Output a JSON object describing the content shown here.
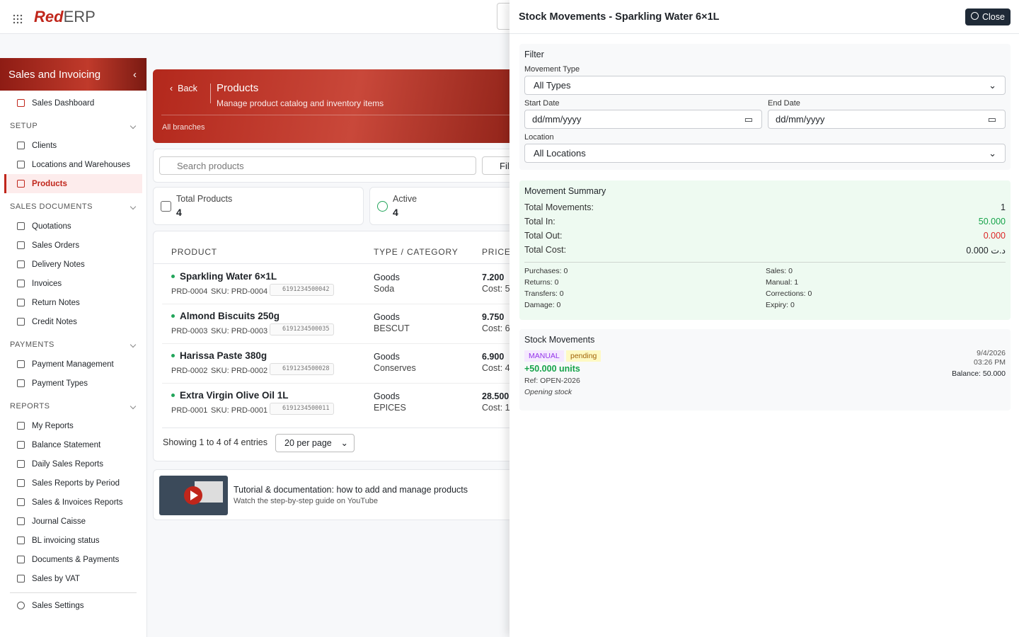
{
  "header": {
    "logo_red": "Red",
    "logo_rest": "ERP"
  },
  "sidebar": {
    "title": "Sales and Invoicing",
    "dashboard": "Sales Dashboard",
    "sections": [
      {
        "title": "SETUP",
        "items": [
          "Clients",
          "Locations and Warehouses",
          "Products"
        ]
      },
      {
        "title": "SALES DOCUMENTS",
        "items": [
          "Quotations",
          "Sales Orders",
          "Delivery Notes",
          "Invoices",
          "Return Notes",
          "Credit Notes"
        ]
      },
      {
        "title": "PAYMENTS",
        "items": [
          "Payment Management",
          "Payment Types"
        ]
      },
      {
        "title": "REPORTS",
        "items": [
          "My Reports",
          "Balance Statement",
          "Daily Sales Reports",
          "Sales Reports by Period",
          "Sales & Invoices Reports",
          "Journal Caisse",
          "BL invoicing status",
          "Documents & Payments",
          "Sales by VAT"
        ]
      }
    ],
    "settings": "Sales Settings"
  },
  "main": {
    "back": "Back",
    "title": "Products",
    "subtitle": "Manage product catalog and inventory items",
    "branches": "All branches",
    "search_placeholder": "Search products",
    "filter": "Filters",
    "stats": [
      {
        "label": "Total Products",
        "value": "4"
      },
      {
        "label": "Active",
        "value": "4"
      }
    ],
    "columns": [
      "PRODUCT",
      "TYPE / CATEGORY",
      "PRICES"
    ],
    "rows": [
      {
        "name": "Sparkling Water 6×1L",
        "id": "PRD-0004",
        "sku": "SKU: PRD-0004",
        "barcode": "6191234500042",
        "type": "Goods",
        "category": "Soda",
        "price": "7.200",
        "cost": "Cost: 5"
      },
      {
        "name": "Almond Biscuits 250g",
        "id": "PRD-0003",
        "sku": "SKU: PRD-0003",
        "barcode": "6191234500035",
        "type": "Goods",
        "category": "BESCUT",
        "price": "9.750",
        "cost": "Cost: 6"
      },
      {
        "name": "Harissa Paste 380g",
        "id": "PRD-0002",
        "sku": "SKU: PRD-0002",
        "barcode": "6191234500028",
        "type": "Goods",
        "category": "Conserves",
        "price": "6.900",
        "cost": "Cost: 4"
      },
      {
        "name": "Extra Virgin Olive Oil 1L",
        "id": "PRD-0001",
        "sku": "SKU: PRD-0001",
        "barcode": "6191234500011",
        "type": "Goods",
        "category": "EPICES",
        "price": "28.500",
        "cost": "Cost: 1"
      }
    ],
    "showing": "Showing 1 to 4 of 4 entries",
    "per_page": "20 per page",
    "tutorial_title": "Tutorial & documentation: how to add and manage products",
    "tutorial_subtitle": "Watch the step-by-step guide on YouTube"
  },
  "panel": {
    "title": "Stock Movements - Sparkling Water 6×1L",
    "close": "Close",
    "filter": {
      "title": "Filter",
      "type_label": "Movement Type",
      "type_value": "All Types",
      "start_label": "Start Date",
      "start_value": "dd/mm/yyyy",
      "end_label": "End Date",
      "end_value": "dd/mm/yyyy",
      "location_label": "Location",
      "location_value": "All Locations"
    },
    "summary": {
      "title": "Movement Summary",
      "rows": [
        {
          "label": "Total Movements:",
          "value": "1"
        },
        {
          "label": "Total In:",
          "value": "50.000"
        },
        {
          "label": "Total Out:",
          "value": "0.000"
        },
        {
          "label": "Total Cost:",
          "value": "0.000 د.ت"
        }
      ],
      "breakdown": [
        "Purchases: 0",
        "Sales: 0",
        "Returns: 0",
        "Manual: 1",
        "Transfers: 0",
        "Corrections: 0",
        "Damage: 0",
        "Expiry: 0"
      ]
    },
    "movements": {
      "title": "Stock Movements",
      "items": [
        {
          "type": "MANUAL",
          "status": "pending",
          "quantity": "+50.000 units",
          "ref": "Ref: OPEN-2026",
          "note": "Opening stock",
          "date": "9/4/2026",
          "time": "03:26 PM",
          "balance": "Balance: 50.000"
        }
      ]
    }
  }
}
